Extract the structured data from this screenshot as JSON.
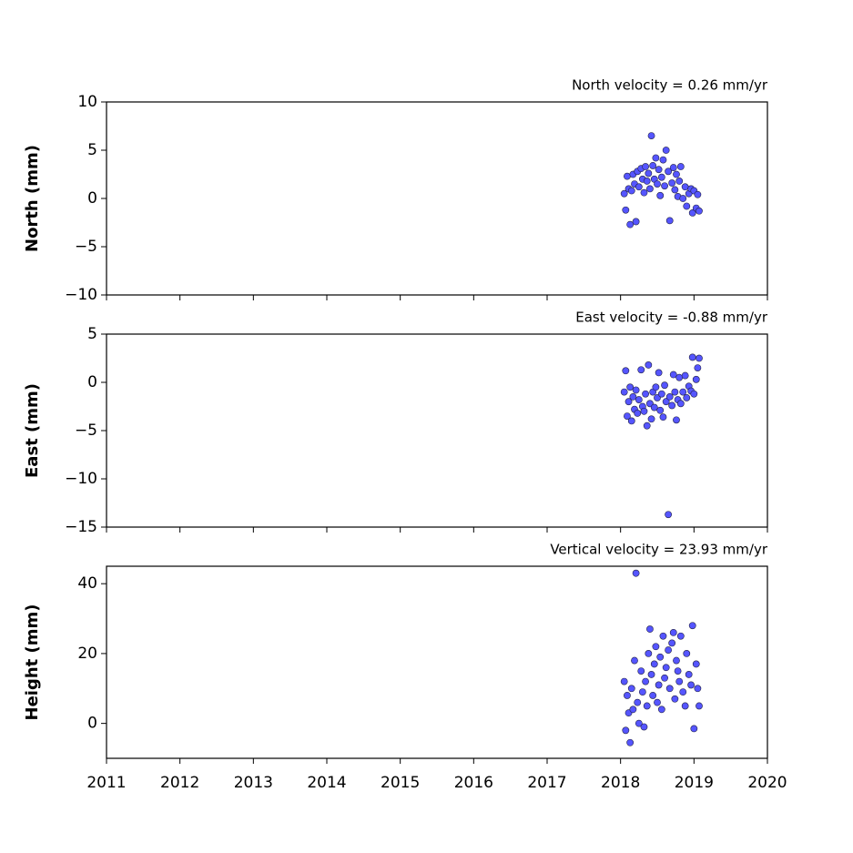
{
  "chart_data": [
    {
      "type": "scatter",
      "title": "North velocity = 0.26 mm/yr",
      "y_label": "North (mm)",
      "color": "#5555ff",
      "edge_color": "#222244",
      "xlim": [
        2011,
        2020
      ],
      "xticks": [
        2011,
        2012,
        2013,
        2014,
        2015,
        2016,
        2017,
        2018,
        2019,
        2020
      ],
      "ylim": [
        -10,
        10
      ],
      "yticks": [
        {
          "value": -10,
          "label": "−10"
        },
        {
          "value": -5,
          "label": "−5"
        },
        0,
        5,
        10
      ],
      "x": [
        2018.05,
        2018.07,
        2018.09,
        2018.11,
        2018.13,
        2018.15,
        2018.17,
        2018.19,
        2018.21,
        2018.23,
        2018.25,
        2018.28,
        2018.3,
        2018.32,
        2018.34,
        2018.36,
        2018.38,
        2018.4,
        2018.42,
        2018.44,
        2018.46,
        2018.48,
        2018.5,
        2018.52,
        2018.54,
        2018.56,
        2018.58,
        2018.6,
        2018.62,
        2018.65,
        2018.67,
        2018.7,
        2018.72,
        2018.74,
        2018.76,
        2018.78,
        2018.8,
        2018.82,
        2018.85,
        2018.88,
        2018.9,
        2018.93,
        2018.96,
        2018.98,
        2019.0,
        2019.03,
        2019.05,
        2019.07
      ],
      "values": [
        0.5,
        -1.2,
        2.3,
        1.0,
        -2.7,
        0.8,
        2.5,
        1.5,
        -2.4,
        2.8,
        1.2,
        3.1,
        2.0,
        0.6,
        3.3,
        1.8,
        2.6,
        1.0,
        6.5,
        3.4,
        2.0,
        4.2,
        1.5,
        3.0,
        0.3,
        2.2,
        4.0,
        1.3,
        5.0,
        2.8,
        -2.3,
        1.6,
        3.2,
        0.9,
        2.5,
        0.2,
        1.8,
        3.3,
        0.0,
        1.2,
        -0.8,
        0.5,
        1.0,
        -1.5,
        0.8,
        -1.0,
        0.4,
        -1.3
      ]
    },
    {
      "type": "scatter",
      "title": "East velocity = -0.88 mm/yr",
      "y_label": "East (mm)",
      "color": "#5555ff",
      "edge_color": "#222244",
      "xlim": [
        2011,
        2020
      ],
      "xticks": [
        2011,
        2012,
        2013,
        2014,
        2015,
        2016,
        2017,
        2018,
        2019,
        2020
      ],
      "ylim": [
        -15,
        5
      ],
      "yticks": [
        {
          "value": -15,
          "label": "−15"
        },
        {
          "value": -10,
          "label": "−10"
        },
        {
          "value": -5,
          "label": "−5"
        },
        0,
        5
      ],
      "x": [
        2018.05,
        2018.07,
        2018.09,
        2018.11,
        2018.13,
        2018.15,
        2018.17,
        2018.19,
        2018.21,
        2018.23,
        2018.25,
        2018.28,
        2018.3,
        2018.32,
        2018.34,
        2018.36,
        2018.38,
        2018.4,
        2018.42,
        2018.44,
        2018.46,
        2018.48,
        2018.5,
        2018.52,
        2018.54,
        2018.56,
        2018.58,
        2018.6,
        2018.62,
        2018.65,
        2018.67,
        2018.7,
        2018.72,
        2018.74,
        2018.76,
        2018.78,
        2018.8,
        2018.82,
        2018.85,
        2018.88,
        2018.9,
        2018.93,
        2018.96,
        2018.98,
        2019.0,
        2019.03,
        2019.05,
        2019.07
      ],
      "values": [
        -1.0,
        1.2,
        -3.5,
        -2.0,
        -0.5,
        -4.0,
        -1.5,
        -2.8,
        -0.8,
        -3.2,
        -1.8,
        1.3,
        -2.5,
        -3.0,
        -1.2,
        -4.5,
        1.8,
        -2.2,
        -3.8,
        -1.0,
        -2.6,
        -0.5,
        -1.6,
        1.0,
        -2.9,
        -1.2,
        -3.6,
        -0.3,
        -2.0,
        -13.7,
        -1.5,
        -2.4,
        0.8,
        -1.0,
        -3.9,
        -1.8,
        0.5,
        -2.2,
        -1.0,
        0.7,
        -1.6,
        -0.4,
        -0.9,
        2.6,
        -1.2,
        0.3,
        1.5,
        2.5
      ]
    },
    {
      "type": "scatter",
      "title": "Vertical velocity = 23.93 mm/yr",
      "y_label": "Height (mm)",
      "color": "#5555ff",
      "edge_color": "#222244",
      "xlim": [
        2011,
        2020
      ],
      "xticks": [
        2011,
        2012,
        2013,
        2014,
        2015,
        2016,
        2017,
        2018,
        2019,
        2020
      ],
      "ylim": [
        -10,
        45
      ],
      "yticks": [
        0,
        20,
        40
      ],
      "x": [
        2018.05,
        2018.07,
        2018.09,
        2018.11,
        2018.13,
        2018.15,
        2018.17,
        2018.19,
        2018.21,
        2018.23,
        2018.25,
        2018.28,
        2018.3,
        2018.32,
        2018.34,
        2018.36,
        2018.38,
        2018.4,
        2018.42,
        2018.44,
        2018.46,
        2018.48,
        2018.5,
        2018.52,
        2018.54,
        2018.56,
        2018.58,
        2018.6,
        2018.62,
        2018.65,
        2018.67,
        2018.7,
        2018.72,
        2018.74,
        2018.76,
        2018.78,
        2018.8,
        2018.82,
        2018.85,
        2018.88,
        2018.9,
        2018.93,
        2018.96,
        2018.98,
        2019.0,
        2019.03,
        2019.05,
        2019.07
      ],
      "values": [
        12,
        -2,
        8,
        3,
        -5.5,
        10,
        4,
        18,
        43,
        6,
        0,
        15,
        9,
        -1,
        12,
        5,
        20,
        27,
        14,
        8,
        17,
        22,
        6,
        11,
        19,
        4,
        25,
        13,
        16,
        21,
        10,
        23,
        26,
        7,
        18,
        15,
        12,
        25,
        9,
        5,
        20,
        14,
        11,
        28,
        -1.5,
        17,
        10,
        5
      ]
    }
  ]
}
